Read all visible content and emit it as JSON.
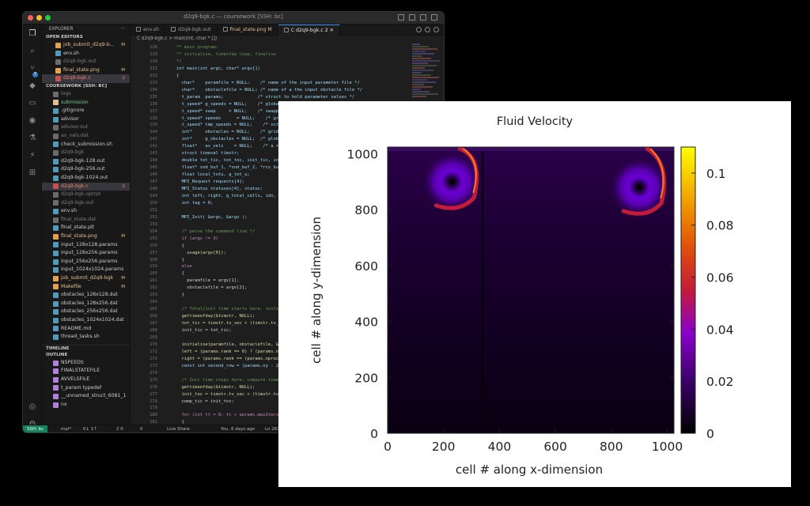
{
  "window": {
    "title": "d2q9-bgk.c — coursework [SSH: bc]"
  },
  "activity_bar": {
    "icons": [
      "files-icon",
      "search-icon",
      "source-control-icon",
      "docker-icon",
      "remote-explorer-icon",
      "github-icon",
      "testing-icon",
      "run-icon",
      "extensions-icon",
      "account-icon",
      "settings-icon"
    ],
    "source_control_badge": "7",
    "settings_badge": "1"
  },
  "explorer": {
    "header": "EXPLORER",
    "open_editors_label": "OPEN EDITORS",
    "open_editors": [
      {
        "name": "job_submit_d2q9-b...",
        "status": "M",
        "kind": "mod"
      },
      {
        "name": "env.sh",
        "status": "",
        "kind": "normal"
      },
      {
        "name": "d2q9-bgk.out",
        "status": "",
        "kind": "dim"
      },
      {
        "name": "final_state.png",
        "status": "M",
        "kind": "mod"
      },
      {
        "name": "d2q9-bgk.c",
        "status": "2",
        "kind": "err"
      }
    ],
    "folder_label": "COURSEWORK [SSH: BC]",
    "files": [
      {
        "name": "logs",
        "status": "",
        "kind": "dim"
      },
      {
        "name": "submission",
        "status": "",
        "kind": "git"
      },
      {
        "name": ".gitignore",
        "status": "",
        "kind": "normal"
      },
      {
        "name": "advisor",
        "status": "",
        "kind": "normal"
      },
      {
        "name": "advisor.out",
        "status": "",
        "kind": "dim"
      },
      {
        "name": "av_vels.dat",
        "status": "",
        "kind": "dim"
      },
      {
        "name": "check_submission.sh",
        "status": "",
        "kind": "normal"
      },
      {
        "name": "d2q9-bgk",
        "status": "",
        "kind": "dim"
      },
      {
        "name": "d2q9-bgk-128.out",
        "status": "",
        "kind": "normal"
      },
      {
        "name": "d2q9-bgk-256.out",
        "status": "",
        "kind": "normal"
      },
      {
        "name": "d2q9-bgk-1024.out",
        "status": "",
        "kind": "normal"
      },
      {
        "name": "d2q9-bgk.c",
        "status": "2",
        "kind": "err"
      },
      {
        "name": "d2q9-bgk.optrpt",
        "status": "",
        "kind": "dim"
      },
      {
        "name": "d2q9-bgk.out",
        "status": "",
        "kind": "dim"
      },
      {
        "name": "env.sh",
        "status": "",
        "kind": "normal"
      },
      {
        "name": "final_state.dat",
        "status": "",
        "kind": "dim"
      },
      {
        "name": "final_state.plt",
        "status": "",
        "kind": "normal"
      },
      {
        "name": "final_state.png",
        "status": "M",
        "kind": "mod"
      },
      {
        "name": "input_128x128.params",
        "status": "",
        "kind": "normal"
      },
      {
        "name": "input_128x256.params",
        "status": "",
        "kind": "normal"
      },
      {
        "name": "input_256x256.params",
        "status": "",
        "kind": "normal"
      },
      {
        "name": "input_1024x1024.params",
        "status": "",
        "kind": "normal"
      },
      {
        "name": "job_submit_d2q9-bgk",
        "status": "M",
        "kind": "mod"
      },
      {
        "name": "Makefile",
        "status": "M",
        "kind": "mod"
      },
      {
        "name": "obstacles_128x128.dat",
        "status": "",
        "kind": "normal"
      },
      {
        "name": "obstacles_128x256.dat",
        "status": "",
        "kind": "normal"
      },
      {
        "name": "obstacles_256x256.dat",
        "status": "",
        "kind": "normal"
      },
      {
        "name": "obstacles_1024x1024.dat",
        "status": "",
        "kind": "normal"
      },
      {
        "name": "README.md",
        "status": "",
        "kind": "normal"
      },
      {
        "name": "thread_tasks.sh",
        "status": "",
        "kind": "normal"
      }
    ],
    "timeline_label": "TIMELINE",
    "outline_label": "OUTLINE",
    "outline": [
      "NSPEEDS",
      "FINALSTATEFILE",
      "AVVELSFILE",
      "t_param typedef",
      "__unnamed_struct_6081_1",
      "nx"
    ]
  },
  "tabs": [
    {
      "label": "env.sh",
      "kind": "normal",
      "active": false
    },
    {
      "label": "d2q9-bgk.out",
      "kind": "normal",
      "active": false
    },
    {
      "label": "final_state.png M",
      "kind": "m",
      "active": false
    },
    {
      "label": "C  d2q9-bgk.c 2",
      "kind": "normal",
      "active": true
    }
  ],
  "breadcrumb": "C  d2q9-bgk.c > main(int, char * [])",
  "code_lines": [
    {
      "n": "128",
      "t": "** main program:"
    },
    {
      "n": "129",
      "t": "** initialise, timestep loop, finalise"
    },
    {
      "n": "130",
      "t": "*/"
    },
    {
      "n": "131",
      "t": "int main(int argc, char* argv[])"
    },
    {
      "n": "132",
      "t": "{"
    },
    {
      "n": "133",
      "t": "  char*    paramfile = NULL;    /* name of the input parameter file */"
    },
    {
      "n": "134",
      "t": "  char*    obstaclefile = NULL; /* name of a the input obstacle file */"
    },
    {
      "n": "135",
      "t": "  t_param  params;             /* struct to hold parameter values */"
    },
    {
      "n": "136",
      "t": "  t_speed* g_speeds = NULL;    /* global speed"
    },
    {
      "n": "137",
      "t": "  t_speed* swap     = NULL;    /* swapping spe"
    },
    {
      "n": "138",
      "t": "  t_speed* speeds      = NULL;    /* grid conta"
    },
    {
      "n": "139",
      "t": "  t_speed* tmp_speeds = NULL;    /* scratch spa"
    },
    {
      "n": "140",
      "t": "  int*     obstacles = NULL;    /* grid indicat"
    },
    {
      "n": "141",
      "t": "  int*     g_obstacles = NULL;  /* global obsta"
    },
    {
      "n": "142",
      "t": "  float*   av_vels    = NULL;    /* a record of t"
    },
    {
      "n": "143",
      "t": "  struct timeval timstr;"
    },
    {
      "n": "144",
      "t": "  double tot_tic, tot_toc, init_tic, init_toc,"
    },
    {
      "n": "145",
      "t": "  float* snd_buf_1, *snd_buf_2, *rcv_buf_1, *rc"
    },
    {
      "n": "146",
      "t": "  float local_totu, g_tot_u;"
    },
    {
      "n": "147",
      "t": "  MPI_Request requests[4];"
    },
    {
      "n": "148",
      "t": "  MPI_Status statuses[4], status;"
    },
    {
      "n": "149",
      "t": "  int left, right, g_total_cells, idx, idx2;"
    },
    {
      "n": "150",
      "t": "  int tag = 0;"
    },
    {
      "n": "151",
      "t": ""
    },
    {
      "n": "152",
      "t": "  MPI_Init( &argc, &argv );"
    },
    {
      "n": "153",
      "t": ""
    },
    {
      "n": "154",
      "t": "  /* parse the command line */"
    },
    {
      "n": "155",
      "t": "  if (argc != 3)"
    },
    {
      "n": "156",
      "t": "  {"
    },
    {
      "n": "157",
      "t": "    usage(argv[0]);"
    },
    {
      "n": "158",
      "t": "  }"
    },
    {
      "n": "159",
      "t": "  else"
    },
    {
      "n": "160",
      "t": "  {"
    },
    {
      "n": "161",
      "t": "    paramfile = argv[1];"
    },
    {
      "n": "162",
      "t": "    obstaclefile = argv[2];"
    },
    {
      "n": "163",
      "t": "  }"
    },
    {
      "n": "164",
      "t": ""
    },
    {
      "n": "165",
      "t": "  /* Total/init time starts here: initialise ou"
    },
    {
      "n": "166",
      "t": "  gettimeofday(&timstr, NULL);"
    },
    {
      "n": "167",
      "t": "  tot_tic = timstr.tv_sec + (timstr.tv_usec /"
    },
    {
      "n": "168",
      "t": "  init_tic = tot_tic;"
    },
    {
      "n": "169",
      "t": ""
    },
    {
      "n": "170",
      "t": "  initialise(paramfile, obstaclefile, &params,"
    },
    {
      "n": "171",
      "t": "  left = (params.rank == 0) ? (params.nprocs -"
    },
    {
      "n": "172",
      "t": "  right = (params.rank == (params.nprocs - 1))"
    },
    {
      "n": "173",
      "t": "  const int second_row = (params.ny - 2)*(param"
    },
    {
      "n": "174",
      "t": ""
    },
    {
      "n": "175",
      "t": "  /* Init time stops here, compute time starts"
    },
    {
      "n": "176",
      "t": "  gettimeofday(&timstr, NULL);"
    },
    {
      "n": "177",
      "t": "  init_toc = timstr.tv_sec + (timstr.tv_usec /"
    },
    {
      "n": "178",
      "t": "  comp_tic = init_toc;"
    },
    {
      "n": "179",
      "t": ""
    },
    {
      "n": "180",
      "t": "  for (int tt = 0; tt < params.maxIters; tt++)"
    },
    {
      "n": "181",
      "t": "  {"
    },
    {
      "n": "182",
      "t": "    #pragma ivdep"
    }
  ],
  "statusbar": {
    "remote": "SSH: bc",
    "branch": "mpi*",
    "sync": "0↓ 1↑",
    "problems": "2  0",
    "ports": "0",
    "liveshare": "Live Share",
    "blame": "You, 6 days ago",
    "position": "Ln 263, Co"
  },
  "plot_window": {
    "chart_data": {
      "type": "heatmap",
      "title": "Fluid Velocity",
      "xlabel": "cell # along x-dimension",
      "ylabel": "cell # along y-dimension",
      "xlim": [
        0,
        1024
      ],
      "ylim": [
        0,
        1024
      ],
      "xticks": [
        "0",
        "200",
        "400",
        "600",
        "800",
        "1000"
      ],
      "yticks": [
        "0",
        "200",
        "400",
        "600",
        "800",
        "1000"
      ],
      "colorbar": {
        "range": [
          0,
          0.11
        ],
        "ticks": [
          "0",
          "0.02",
          "0.04",
          "0.06",
          "0.08",
          "0.1"
        ],
        "colormap": "gnuplot"
      },
      "vortices": [
        {
          "x": 230,
          "y": 900,
          "peak": 0.11
        },
        {
          "x": 900,
          "y": 880,
          "peak": 0.11
        }
      ],
      "obstacle_x": 340
    }
  }
}
